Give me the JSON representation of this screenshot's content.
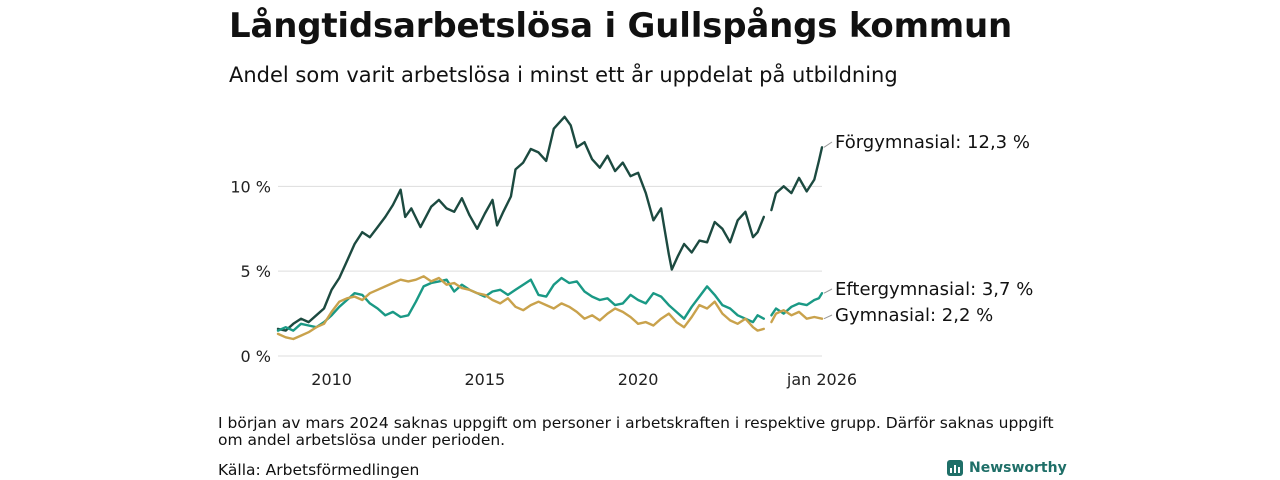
{
  "header": {
    "title": "Långtidsarbetslösa i Gullspångs kommun",
    "subtitle": "Andel som varit arbetslösa i minst ett år uppdelat på utbildning"
  },
  "footer": {
    "note": "I början av mars 2024 saknas uppgift om personer i arbetskraften i respektive grupp. Därför saknas uppgift om andel arbetslösa under perioden.",
    "source": "Källa: Arbetsförmedlingen",
    "brand": "Newsworthy"
  },
  "colors": {
    "forgymnasial": "#1c4a40",
    "eftergymnasial": "#1a9985",
    "gymnasial": "#c9a24c",
    "grid": "#dddddd"
  },
  "chart_data": {
    "type": "line",
    "title": "Långtidsarbetslösa i Gullspångs kommun",
    "subtitle": "Andel som varit arbetslösa i minst ett år uppdelat på utbildning",
    "xlabel": "",
    "ylabel": "",
    "xlim": [
      2008.25,
      2026.0
    ],
    "ylim": [
      0,
      14.5
    ],
    "x_ticks": [
      {
        "value": 2010,
        "label": "2010"
      },
      {
        "value": 2015,
        "label": "2015"
      },
      {
        "value": 2020,
        "label": "2020"
      },
      {
        "value": 2026.0,
        "label": "jan 2026"
      }
    ],
    "y_ticks": [
      {
        "value": 0,
        "label": "0 %"
      },
      {
        "value": 5,
        "label": "5 %"
      },
      {
        "value": 10,
        "label": "10 %"
      }
    ],
    "gap": [
      2024.1,
      2024.35
    ],
    "series": [
      {
        "name": "Förgymnasial",
        "end_label": "Förgymnasial: 12,3 %",
        "color": "#1c4a40",
        "points": [
          [
            2008.25,
            1.6
          ],
          [
            2008.5,
            1.5
          ],
          [
            2008.75,
            1.9
          ],
          [
            2009.0,
            2.2
          ],
          [
            2009.25,
            2.0
          ],
          [
            2009.5,
            2.4
          ],
          [
            2009.75,
            2.8
          ],
          [
            2010.0,
            3.9
          ],
          [
            2010.25,
            4.6
          ],
          [
            2010.5,
            5.6
          ],
          [
            2010.75,
            6.6
          ],
          [
            2011.0,
            7.3
          ],
          [
            2011.25,
            7.0
          ],
          [
            2011.5,
            7.6
          ],
          [
            2011.75,
            8.2
          ],
          [
            2012.0,
            8.9
          ],
          [
            2012.25,
            9.8
          ],
          [
            2012.4,
            8.2
          ],
          [
            2012.6,
            8.7
          ],
          [
            2012.9,
            7.6
          ],
          [
            2013.25,
            8.8
          ],
          [
            2013.5,
            9.2
          ],
          [
            2013.75,
            8.7
          ],
          [
            2014.0,
            8.5
          ],
          [
            2014.25,
            9.3
          ],
          [
            2014.5,
            8.3
          ],
          [
            2014.75,
            7.5
          ],
          [
            2015.0,
            8.4
          ],
          [
            2015.25,
            9.2
          ],
          [
            2015.4,
            7.7
          ],
          [
            2015.6,
            8.5
          ],
          [
            2015.85,
            9.4
          ],
          [
            2016.0,
            11.0
          ],
          [
            2016.25,
            11.4
          ],
          [
            2016.5,
            12.2
          ],
          [
            2016.75,
            12.0
          ],
          [
            2017.0,
            11.5
          ],
          [
            2017.25,
            13.4
          ],
          [
            2017.4,
            13.7
          ],
          [
            2017.6,
            14.1
          ],
          [
            2017.8,
            13.6
          ],
          [
            2018.0,
            12.3
          ],
          [
            2018.25,
            12.6
          ],
          [
            2018.5,
            11.6
          ],
          [
            2018.75,
            11.1
          ],
          [
            2019.0,
            11.8
          ],
          [
            2019.25,
            10.9
          ],
          [
            2019.5,
            11.4
          ],
          [
            2019.75,
            10.6
          ],
          [
            2020.0,
            10.8
          ],
          [
            2020.25,
            9.6
          ],
          [
            2020.5,
            8.0
          ],
          [
            2020.75,
            8.7
          ],
          [
            2020.85,
            7.6
          ],
          [
            2021.0,
            6.0
          ],
          [
            2021.1,
            5.1
          ],
          [
            2021.3,
            5.9
          ],
          [
            2021.5,
            6.6
          ],
          [
            2021.75,
            6.1
          ],
          [
            2022.0,
            6.8
          ],
          [
            2022.25,
            6.7
          ],
          [
            2022.5,
            7.9
          ],
          [
            2022.75,
            7.5
          ],
          [
            2023.0,
            6.7
          ],
          [
            2023.25,
            8.0
          ],
          [
            2023.5,
            8.5
          ],
          [
            2023.75,
            7.0
          ],
          [
            2023.9,
            7.3
          ],
          [
            2024.1,
            8.2
          ],
          [
            2024.35,
            8.6
          ],
          [
            2024.5,
            9.6
          ],
          [
            2024.75,
            10.0
          ],
          [
            2025.0,
            9.6
          ],
          [
            2025.25,
            10.5
          ],
          [
            2025.5,
            9.7
          ],
          [
            2025.75,
            10.4
          ],
          [
            2025.9,
            11.5
          ],
          [
            2026.0,
            12.3
          ]
        ]
      },
      {
        "name": "Eftergymnasial",
        "end_label": "Eftergymnasial:  3,7 %",
        "color": "#1a9985",
        "points": [
          [
            2008.25,
            1.5
          ],
          [
            2008.5,
            1.7
          ],
          [
            2008.75,
            1.5
          ],
          [
            2009.0,
            1.9
          ],
          [
            2009.25,
            1.8
          ],
          [
            2009.5,
            1.7
          ],
          [
            2009.75,
            2.0
          ],
          [
            2010.0,
            2.4
          ],
          [
            2010.25,
            2.9
          ],
          [
            2010.5,
            3.3
          ],
          [
            2010.75,
            3.7
          ],
          [
            2011.0,
            3.6
          ],
          [
            2011.25,
            3.1
          ],
          [
            2011.5,
            2.8
          ],
          [
            2011.75,
            2.4
          ],
          [
            2012.0,
            2.6
          ],
          [
            2012.25,
            2.3
          ],
          [
            2012.5,
            2.4
          ],
          [
            2012.75,
            3.2
          ],
          [
            2013.0,
            4.1
          ],
          [
            2013.25,
            4.3
          ],
          [
            2013.5,
            4.4
          ],
          [
            2013.75,
            4.5
          ],
          [
            2014.0,
            3.8
          ],
          [
            2014.25,
            4.2
          ],
          [
            2014.5,
            3.9
          ],
          [
            2014.75,
            3.7
          ],
          [
            2015.0,
            3.5
          ],
          [
            2015.25,
            3.8
          ],
          [
            2015.5,
            3.9
          ],
          [
            2015.75,
            3.6
          ],
          [
            2016.0,
            3.9
          ],
          [
            2016.25,
            4.2
          ],
          [
            2016.5,
            4.5
          ],
          [
            2016.75,
            3.6
          ],
          [
            2017.0,
            3.5
          ],
          [
            2017.25,
            4.2
          ],
          [
            2017.5,
            4.6
          ],
          [
            2017.75,
            4.3
          ],
          [
            2018.0,
            4.4
          ],
          [
            2018.25,
            3.8
          ],
          [
            2018.5,
            3.5
          ],
          [
            2018.75,
            3.3
          ],
          [
            2019.0,
            3.4
          ],
          [
            2019.25,
            3.0
          ],
          [
            2019.5,
            3.1
          ],
          [
            2019.75,
            3.6
          ],
          [
            2020.0,
            3.3
          ],
          [
            2020.25,
            3.1
          ],
          [
            2020.5,
            3.7
          ],
          [
            2020.75,
            3.5
          ],
          [
            2021.0,
            3.0
          ],
          [
            2021.25,
            2.6
          ],
          [
            2021.5,
            2.2
          ],
          [
            2021.75,
            2.9
          ],
          [
            2022.0,
            3.5
          ],
          [
            2022.25,
            4.1
          ],
          [
            2022.5,
            3.6
          ],
          [
            2022.75,
            3.0
          ],
          [
            2023.0,
            2.8
          ],
          [
            2023.25,
            2.4
          ],
          [
            2023.5,
            2.2
          ],
          [
            2023.75,
            2.0
          ],
          [
            2023.9,
            2.4
          ],
          [
            2024.1,
            2.2
          ],
          [
            2024.35,
            2.4
          ],
          [
            2024.5,
            2.8
          ],
          [
            2024.75,
            2.5
          ],
          [
            2025.0,
            2.9
          ],
          [
            2025.25,
            3.1
          ],
          [
            2025.5,
            3.0
          ],
          [
            2025.75,
            3.3
          ],
          [
            2025.9,
            3.4
          ],
          [
            2026.0,
            3.7
          ]
        ]
      },
      {
        "name": "Gymnasial",
        "end_label": "Gymnasial:  2,2 %",
        "color": "#c9a24c",
        "points": [
          [
            2008.25,
            1.3
          ],
          [
            2008.5,
            1.1
          ],
          [
            2008.75,
            1.0
          ],
          [
            2009.0,
            1.2
          ],
          [
            2009.25,
            1.4
          ],
          [
            2009.5,
            1.7
          ],
          [
            2009.75,
            1.9
          ],
          [
            2010.0,
            2.6
          ],
          [
            2010.25,
            3.2
          ],
          [
            2010.5,
            3.4
          ],
          [
            2010.75,
            3.5
          ],
          [
            2011.0,
            3.3
          ],
          [
            2011.25,
            3.7
          ],
          [
            2011.5,
            3.9
          ],
          [
            2011.75,
            4.1
          ],
          [
            2012.0,
            4.3
          ],
          [
            2012.25,
            4.5
          ],
          [
            2012.5,
            4.4
          ],
          [
            2012.75,
            4.5
          ],
          [
            2013.0,
            4.7
          ],
          [
            2013.25,
            4.4
          ],
          [
            2013.5,
            4.6
          ],
          [
            2013.75,
            4.2
          ],
          [
            2014.0,
            4.3
          ],
          [
            2014.25,
            4.0
          ],
          [
            2014.5,
            3.9
          ],
          [
            2014.75,
            3.7
          ],
          [
            2015.0,
            3.6
          ],
          [
            2015.25,
            3.3
          ],
          [
            2015.5,
            3.1
          ],
          [
            2015.75,
            3.4
          ],
          [
            2016.0,
            2.9
          ],
          [
            2016.25,
            2.7
          ],
          [
            2016.5,
            3.0
          ],
          [
            2016.75,
            3.2
          ],
          [
            2017.0,
            3.0
          ],
          [
            2017.25,
            2.8
          ],
          [
            2017.5,
            3.1
          ],
          [
            2017.75,
            2.9
          ],
          [
            2018.0,
            2.6
          ],
          [
            2018.25,
            2.2
          ],
          [
            2018.5,
            2.4
          ],
          [
            2018.75,
            2.1
          ],
          [
            2019.0,
            2.5
          ],
          [
            2019.25,
            2.8
          ],
          [
            2019.5,
            2.6
          ],
          [
            2019.75,
            2.3
          ],
          [
            2020.0,
            1.9
          ],
          [
            2020.25,
            2.0
          ],
          [
            2020.5,
            1.8
          ],
          [
            2020.75,
            2.2
          ],
          [
            2021.0,
            2.5
          ],
          [
            2021.25,
            2.0
          ],
          [
            2021.5,
            1.7
          ],
          [
            2021.75,
            2.3
          ],
          [
            2022.0,
            3.0
          ],
          [
            2022.25,
            2.8
          ],
          [
            2022.5,
            3.2
          ],
          [
            2022.75,
            2.5
          ],
          [
            2023.0,
            2.1
          ],
          [
            2023.25,
            1.9
          ],
          [
            2023.5,
            2.2
          ],
          [
            2023.75,
            1.7
          ],
          [
            2023.9,
            1.5
          ],
          [
            2024.1,
            1.6
          ],
          [
            2024.35,
            2.0
          ],
          [
            2024.5,
            2.5
          ],
          [
            2024.75,
            2.7
          ],
          [
            2025.0,
            2.4
          ],
          [
            2025.25,
            2.6
          ],
          [
            2025.5,
            2.2
          ],
          [
            2025.75,
            2.3
          ],
          [
            2026.0,
            2.2
          ]
        ]
      }
    ]
  }
}
